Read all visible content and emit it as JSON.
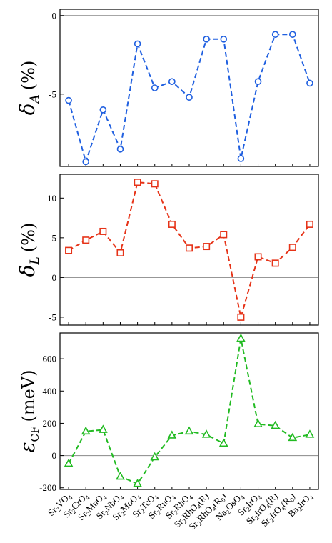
{
  "chart_data": {
    "type": "line",
    "shared_categories": [
      "Sr2VO4",
      "Sr2CrO4",
      "Sr2MnO4",
      "Sr2NbO4",
      "Sr2MoO4",
      "Sr2TcO4",
      "Sr2RuO4",
      "Sr2RhO4",
      "Sr2RhO4(R)",
      "Sr2RhO4(R0)",
      "Na2OsO4",
      "Sr2IrO4",
      "Sr2IrO4(R)",
      "Sr2IrO4(R0)",
      "Ba2IrO4"
    ],
    "category_labels": [
      {
        "base": "Sr",
        "s1": "2",
        "mid": "VO",
        "s2": "4",
        "tail": ""
      },
      {
        "base": "Sr",
        "s1": "2",
        "mid": "CrO",
        "s2": "4",
        "tail": ""
      },
      {
        "base": "Sr",
        "s1": "2",
        "mid": "MnO",
        "s2": "4",
        "tail": ""
      },
      {
        "base": "Sr",
        "s1": "2",
        "mid": "NbO",
        "s2": "4",
        "tail": ""
      },
      {
        "base": "Sr",
        "s1": "2",
        "mid": "MoO",
        "s2": "4",
        "tail": ""
      },
      {
        "base": "Sr",
        "s1": "2",
        "mid": "TcO",
        "s2": "4",
        "tail": ""
      },
      {
        "base": "Sr",
        "s1": "2",
        "mid": "RuO",
        "s2": "4",
        "tail": ""
      },
      {
        "base": "Sr",
        "s1": "2",
        "mid": "RhO",
        "s2": "4",
        "tail": ""
      },
      {
        "base": "Sr",
        "s1": "2",
        "mid": "RhO",
        "s2": "4",
        "tail": "(R)"
      },
      {
        "base": "Sr",
        "s1": "2",
        "mid": "RhO",
        "s2": "4",
        "tail": "(R",
        "t1": "0",
        "t2": ")"
      },
      {
        "base": "Na",
        "s1": "2",
        "mid": "OsO",
        "s2": "4",
        "tail": ""
      },
      {
        "base": "Sr",
        "s1": "2",
        "mid": "IrO",
        "s2": "4",
        "tail": ""
      },
      {
        "base": "Sr",
        "s1": "2",
        "mid": "IrO",
        "s2": "4",
        "tail": "(R)"
      },
      {
        "base": "Sr",
        "s1": "2",
        "mid": "IrO",
        "s2": "4",
        "tail": "(R",
        "t1": "0",
        "t2": ")"
      },
      {
        "base": "Ba",
        "s1": "2",
        "mid": "IrO",
        "s2": "4",
        "tail": ""
      }
    ],
    "panels": [
      {
        "id": "delta-a",
        "ylabel_main": "δ",
        "ylabel_sub": "A",
        "ylabel_unit": "(%)",
        "ylim": [
          -9.6,
          0.4
        ],
        "yticks": [
          0,
          -5
        ],
        "ytick_labels": [
          "0",
          "-5"
        ],
        "zero_line": true,
        "color": "#1f5fe0",
        "marker": "circle",
        "values": [
          -5.4,
          -9.3,
          -6.0,
          -8.5,
          -1.8,
          -4.6,
          -4.2,
          -5.2,
          -1.5,
          -1.5,
          -9.1,
          -4.2,
          -1.2,
          -1.2,
          -4.3
        ]
      },
      {
        "id": "delta-l",
        "ylabel_main": "δ",
        "ylabel_sub": "L",
        "ylabel_unit": "(%)",
        "ylim": [
          -6,
          13
        ],
        "yticks": [
          10,
          5,
          0,
          -5
        ],
        "ytick_labels": [
          "10",
          "5",
          "0",
          "-5"
        ],
        "zero_line": true,
        "color": "#e63318",
        "marker": "square",
        "values": [
          3.4,
          4.7,
          5.8,
          3.1,
          12.0,
          11.8,
          6.7,
          3.7,
          3.9,
          5.4,
          -5.0,
          2.6,
          1.8,
          3.8,
          6.7
        ]
      },
      {
        "id": "epsilon-cf",
        "ylabel_main": "ε",
        "ylabel_sub": "CF",
        "ylabel_unit": "(meV)",
        "ylim": [
          -210,
          760
        ],
        "yticks": [
          600,
          400,
          200,
          0,
          -200
        ],
        "ytick_labels": [
          "600",
          "400",
          "200",
          "0",
          "-200"
        ],
        "zero_line": true,
        "color": "#22bb22",
        "marker": "triangle",
        "values": [
          -50,
          150,
          160,
          -130,
          -175,
          -10,
          125,
          150,
          130,
          75,
          725,
          195,
          185,
          110,
          130
        ]
      }
    ]
  }
}
